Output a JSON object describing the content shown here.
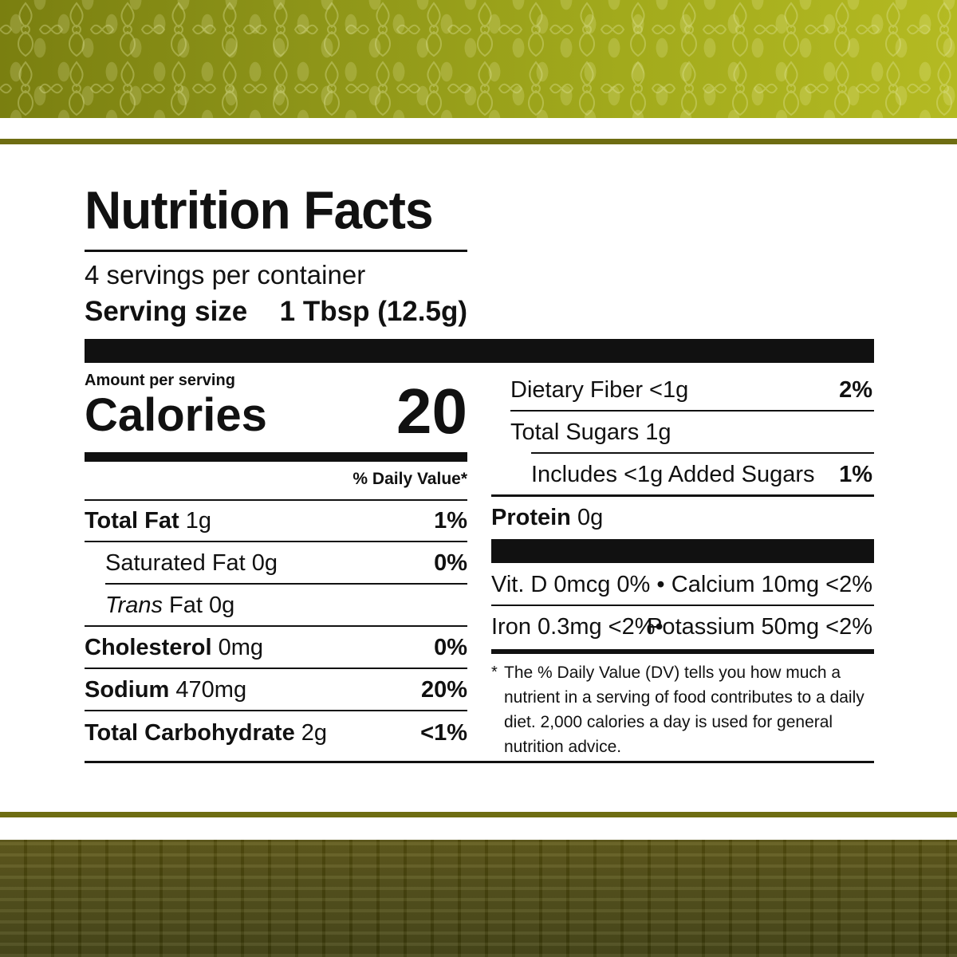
{
  "title": "Nutrition Facts",
  "servings": "4 servings per container",
  "serving_size_label": "Serving size",
  "serving_size_value": "1 Tbsp (12.5g)",
  "amount_per_serving": "Amount per serving",
  "calories_label": "Calories",
  "calories_value": "20",
  "dv_header": "% Daily Value*",
  "left_rows": [
    {
      "label_bold": "Total Fat",
      "label": " 1g",
      "pct": "1%"
    },
    {
      "label_bold": "",
      "label": "Saturated Fat 0g",
      "pct": "0%"
    },
    {
      "label_italic": "Trans",
      "label": " Fat 0g",
      "pct": ""
    },
    {
      "label_bold": "Cholesterol",
      "label": " 0mg",
      "pct": "0%"
    },
    {
      "label_bold": "Sodium",
      "label": " 470mg",
      "pct": "20%"
    },
    {
      "label_bold": "Total Carbohydrate",
      "label": " 2g",
      "pct": "<1%"
    }
  ],
  "right_rows": [
    {
      "label_bold": "",
      "label": "Dietary Fiber <1g",
      "pct": "2%"
    },
    {
      "label_bold": "",
      "label": "Total Sugars 1g",
      "pct": ""
    },
    {
      "label_bold": "",
      "label": "Includes <1g Added Sugars",
      "pct": "1%"
    },
    {
      "label_bold": "Protein",
      "label": " 0g",
      "pct": ""
    }
  ],
  "vitamins": [
    {
      "left": "Vit. D 0mcg 0% •",
      "right": "Calcium 10mg <2%"
    },
    {
      "left": "Iron 0.3mg <2%•",
      "right": "Potassium 50mg <2%"
    }
  ],
  "footnote_mark": "*",
  "footnote": "The % Daily Value (DV) tells you how much a nutrient in a serving of food contributes to a daily diet. 2,000 calories a day is used for general nutrition advice.",
  "colors": {
    "band_top": "#9aa01c",
    "band_bottom": "#4e4a10",
    "rule": "#6e6d12",
    "text": "#111111"
  }
}
